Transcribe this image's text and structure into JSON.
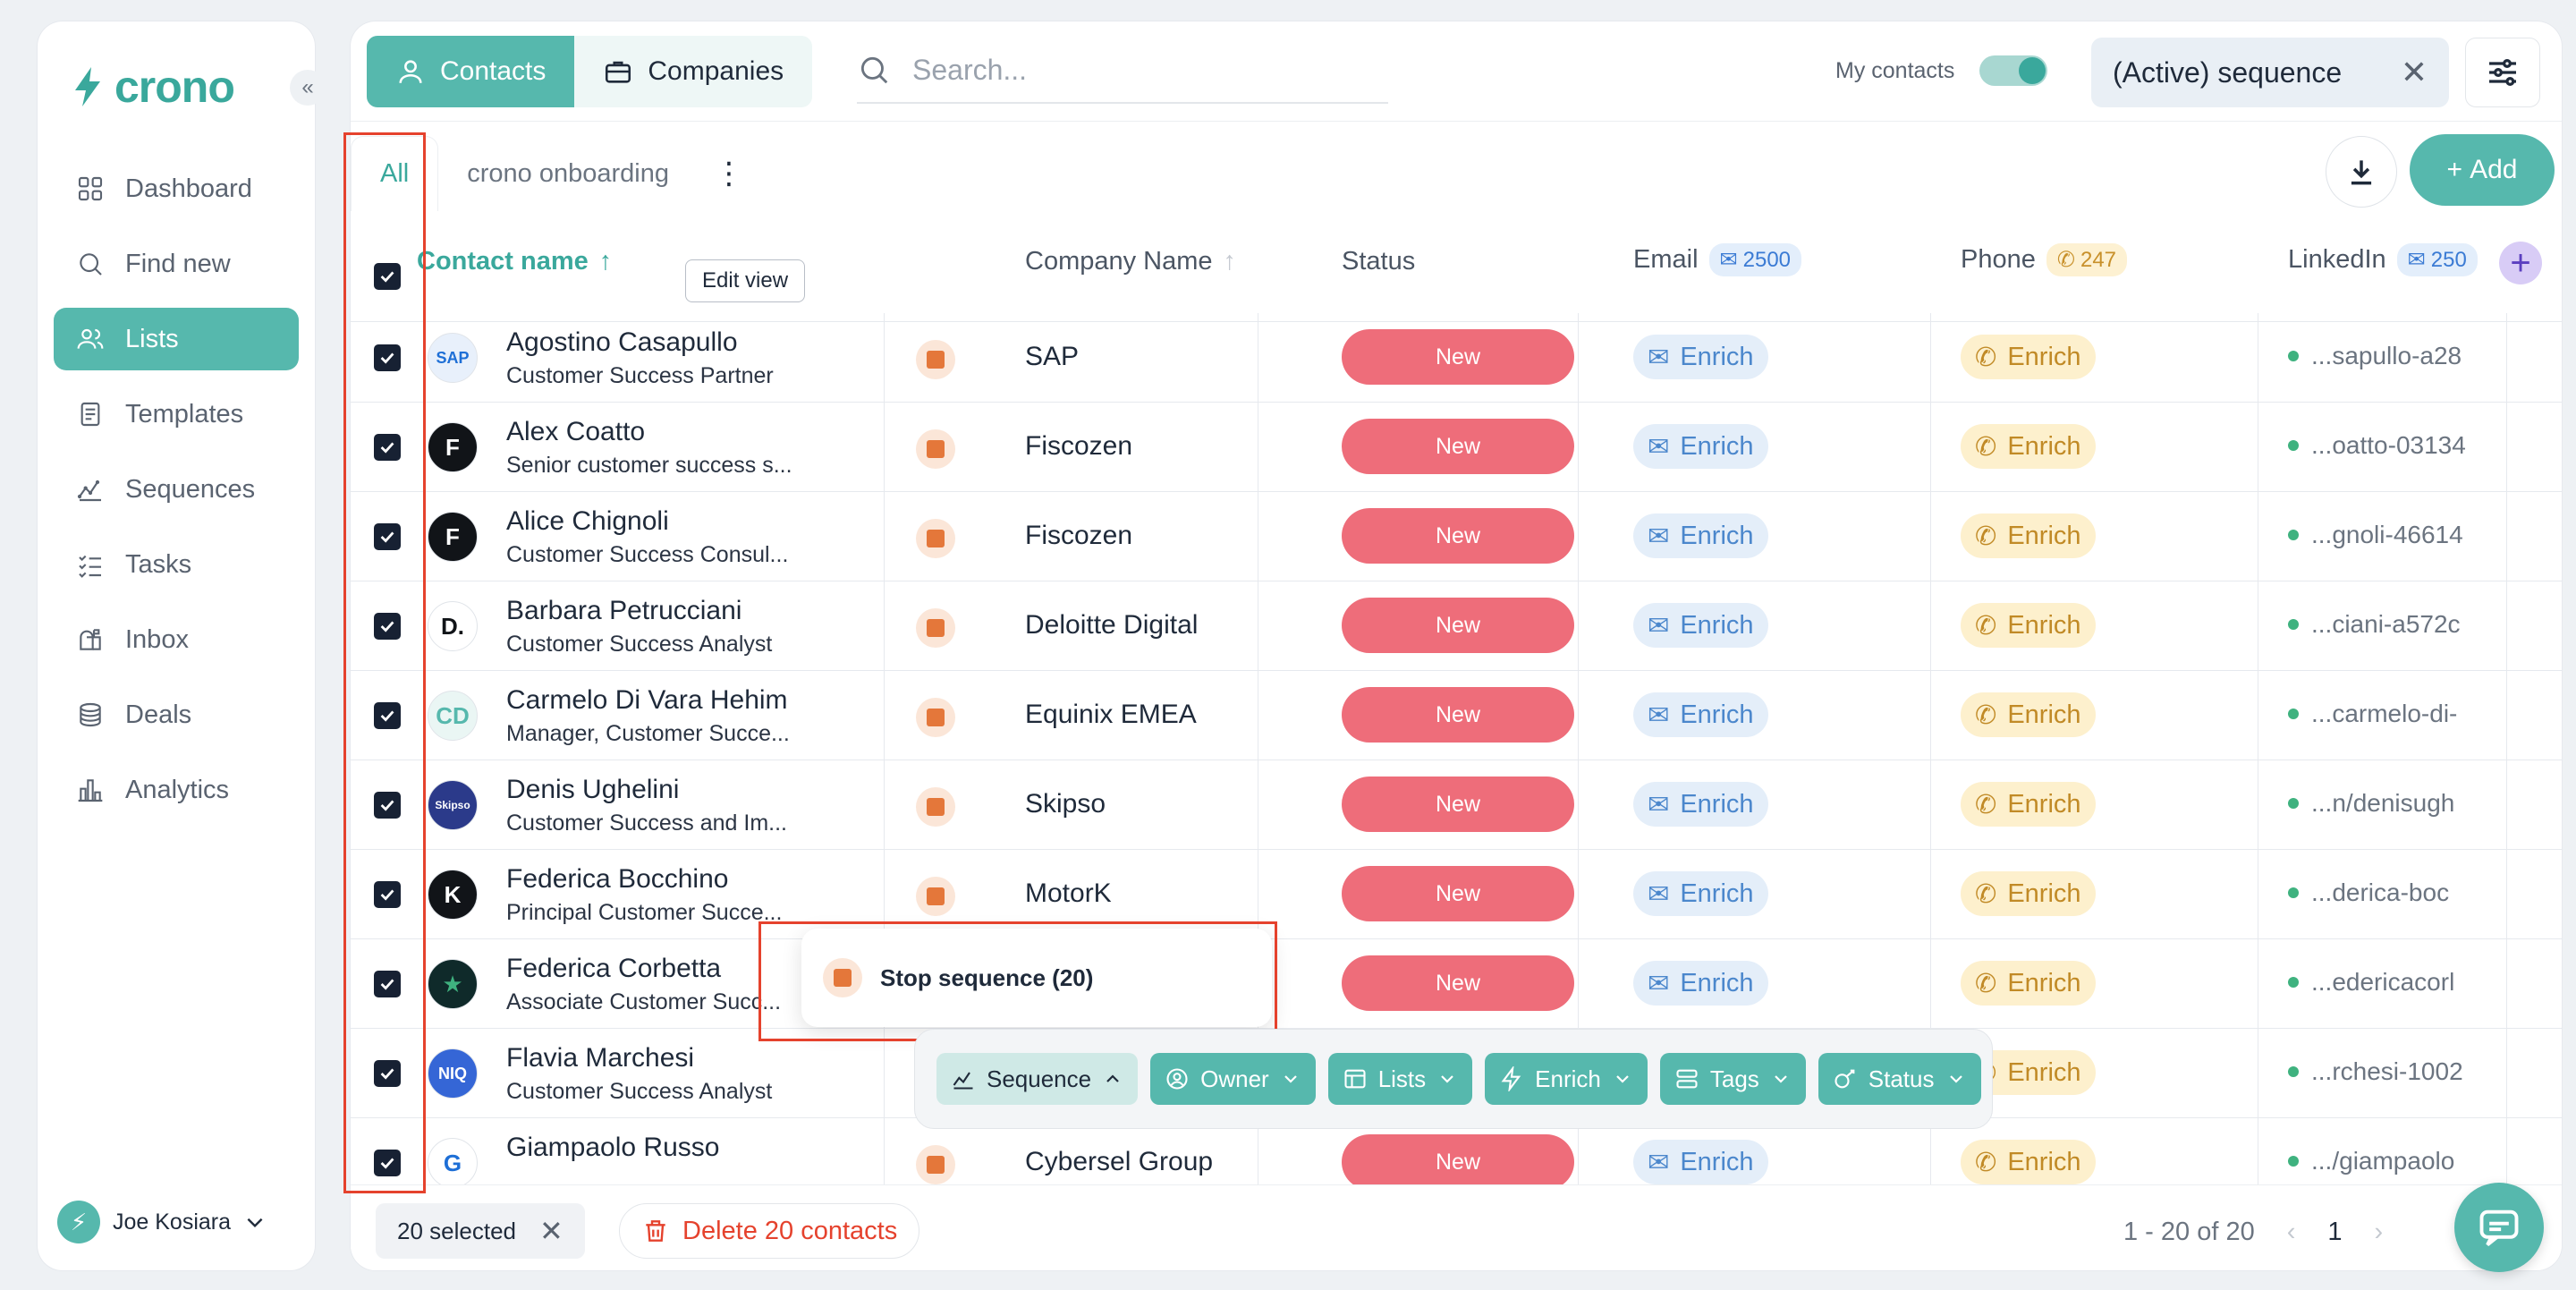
{
  "app": {
    "name": "crono"
  },
  "sidebar": {
    "collapse_icon": "double-chevron-left-icon",
    "items": [
      {
        "label": "Dashboard",
        "icon": "grid-icon",
        "active": false
      },
      {
        "label": "Find new",
        "icon": "search-icon",
        "active": false
      },
      {
        "label": "Lists",
        "icon": "users-icon",
        "active": true
      },
      {
        "label": "Templates",
        "icon": "document-icon",
        "active": false
      },
      {
        "label": "Sequences",
        "icon": "sequence-icon",
        "active": false
      },
      {
        "label": "Tasks",
        "icon": "checklist-icon",
        "active": false
      },
      {
        "label": "Inbox",
        "icon": "mailbox-icon",
        "active": false
      },
      {
        "label": "Deals",
        "icon": "coins-icon",
        "active": false
      },
      {
        "label": "Analytics",
        "icon": "bar-chart-icon",
        "active": false
      }
    ],
    "user": {
      "initial": "⚡",
      "name": "Joe Kosiara"
    }
  },
  "topbar": {
    "contacts_label": "Contacts",
    "companies_label": "Companies",
    "search_placeholder": "Search...",
    "my_contacts_label": "My contacts",
    "filter_chip": "(Active) sequence",
    "accent": "#56b8ad"
  },
  "tabs": [
    {
      "label": "All",
      "active": true
    },
    {
      "label": "crono onboarding",
      "active": false
    }
  ],
  "actions": {
    "add_label": "Add"
  },
  "table": {
    "headers": {
      "contact_name": "Contact name",
      "edit_view": "Edit view",
      "company_name": "Company Name",
      "status": "Status",
      "email": "Email",
      "email_count": "2500",
      "phone": "Phone",
      "phone_count": "247",
      "linkedin": "LinkedIn",
      "linkedin_count": "250"
    },
    "rows": [
      {
        "name": "Agostino Casapullo",
        "title": "Customer Success Partner",
        "company": "SAP",
        "status": "New",
        "email": "Enrich",
        "phone": "Enrich",
        "linkedin": "...sapullo-a28",
        "avatar": "SAP",
        "avatar_bg": "#e8f0fb",
        "avatar_fg": "#1e6fd6"
      },
      {
        "name": "Alex Coatto",
        "title": "Senior customer success s...",
        "company": "Fiscozen",
        "status": "New",
        "email": "Enrich",
        "phone": "Enrich",
        "linkedin": "...oatto-03134",
        "avatar": "F",
        "avatar_bg": "#111418",
        "avatar_fg": "#ffffff"
      },
      {
        "name": "Alice Chignoli",
        "title": "Customer Success Consul...",
        "company": "Fiscozen",
        "status": "New",
        "email": "Enrich",
        "phone": "Enrich",
        "linkedin": "...gnoli-46614",
        "avatar": "F",
        "avatar_bg": "#111418",
        "avatar_fg": "#ffffff"
      },
      {
        "name": "Barbara Petrucciani",
        "title": "Customer Success Analyst",
        "company": "Deloitte Digital",
        "status": "New",
        "email": "Enrich",
        "phone": "Enrich",
        "linkedin": "...ciani-a572c",
        "avatar": "D.",
        "avatar_bg": "#ffffff",
        "avatar_fg": "#111418"
      },
      {
        "name": "Carmelo Di Vara Hehim",
        "title": "Manager, Customer Succe...",
        "company": "Equinix EMEA",
        "status": "New",
        "email": "Enrich",
        "phone": "Enrich",
        "linkedin": "...carmelo-di-",
        "avatar": "CD",
        "avatar_bg": "#eaf6f4",
        "avatar_fg": "#56b8ad"
      },
      {
        "name": "Denis Ughelini",
        "title": "Customer Success and Im...",
        "company": "Skipso",
        "status": "New",
        "email": "Enrich",
        "phone": "Enrich",
        "linkedin": "...n/denisugh",
        "avatar": "Skipso",
        "avatar_bg": "#2b3a8a",
        "avatar_fg": "#ffffff"
      },
      {
        "name": "Federica Bocchino",
        "title": "Principal Customer Succe...",
        "company": "MotorK",
        "status": "New",
        "email": "Enrich",
        "phone": "Enrich",
        "linkedin": "...derica-boc",
        "avatar": "K",
        "avatar_bg": "#111418",
        "avatar_fg": "#ffffff"
      },
      {
        "name": "Federica Corbetta",
        "title": "Associate Customer Succ...",
        "company": "",
        "status": "New",
        "email": "Enrich",
        "phone": "Enrich",
        "linkedin": "...edericacorl",
        "avatar": "★",
        "avatar_bg": "#0f2a2a",
        "avatar_fg": "#3fb27f"
      },
      {
        "name": "Flavia Marchesi",
        "title": "Customer Success Analyst",
        "company": "",
        "status": "",
        "email": "",
        "phone": "Enrich",
        "linkedin": "...rchesi-1002",
        "avatar": "NIQ",
        "avatar_bg": "#3566d6",
        "avatar_fg": "#ffffff"
      },
      {
        "name": "Giampaolo Russo",
        "title": "",
        "company": "Cybersel Group",
        "status": "New",
        "email": "Enrich",
        "phone": "Enrich",
        "linkedin": ".../giampaolo",
        "avatar": "G",
        "avatar_bg": "#ffffff",
        "avatar_fg": "#1e6fd6"
      }
    ]
  },
  "popup": {
    "stop_label": "Stop sequence (20)"
  },
  "bulk_actions": [
    {
      "label": "Sequence",
      "icon": "sequence-icon",
      "open": true
    },
    {
      "label": "Owner",
      "icon": "user-circle-icon",
      "open": false
    },
    {
      "label": "Lists",
      "icon": "table-icon",
      "open": false
    },
    {
      "label": "Enrich",
      "icon": "bolt-icon",
      "open": false
    },
    {
      "label": "Tags",
      "icon": "tags-icon",
      "open": false
    },
    {
      "label": "Status",
      "icon": "status-icon",
      "open": false
    }
  ],
  "footer": {
    "selected_label": "20 selected",
    "delete_label": "Delete 20 contacts",
    "range": "1 - 20 of 20",
    "page": "1"
  }
}
